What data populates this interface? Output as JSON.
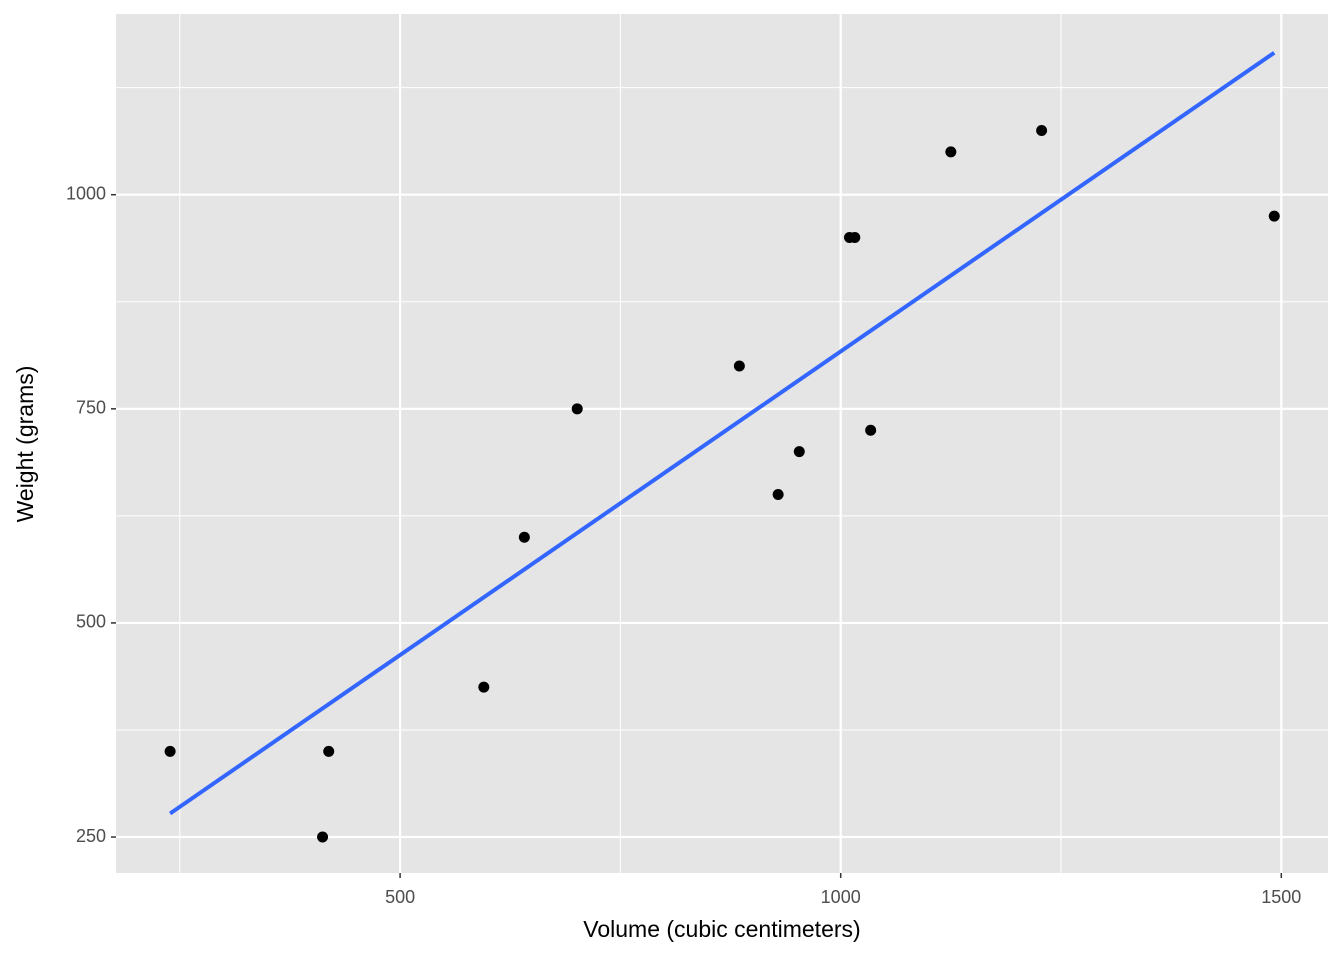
{
  "chart_data": {
    "type": "scatter",
    "x_label": "Volume (cubic centimeters)",
    "y_label": "Weight (grams)",
    "x": [
      885,
      1016,
      1125,
      239,
      701,
      641,
      1228,
      412,
      953,
      929,
      1492,
      419,
      1010,
      595,
      1034
    ],
    "series": [
      {
        "color": "#000000",
        "values": [
          800,
          950,
          1050,
          350,
          750,
          600,
          1075,
          250,
          700,
          650,
          975,
          350,
          950,
          425,
          725
        ]
      }
    ],
    "fit": {
      "color": "#3366ff",
      "x": [
        239,
        1492
      ],
      "values": [
        277.5,
        1165.8
      ]
    },
    "xlim": [
      177.6,
      1553
    ],
    "ylim": [
      208,
      1211
    ],
    "xticks": [
      500,
      1000,
      1500
    ],
    "yticks": [
      250,
      500,
      750,
      1000
    ],
    "xminorticks": [
      250,
      750,
      1250
    ],
    "yminorticks": [
      375,
      625,
      875,
      1125
    ],
    "grid": true,
    "panel_color": "#e5e5e5"
  }
}
